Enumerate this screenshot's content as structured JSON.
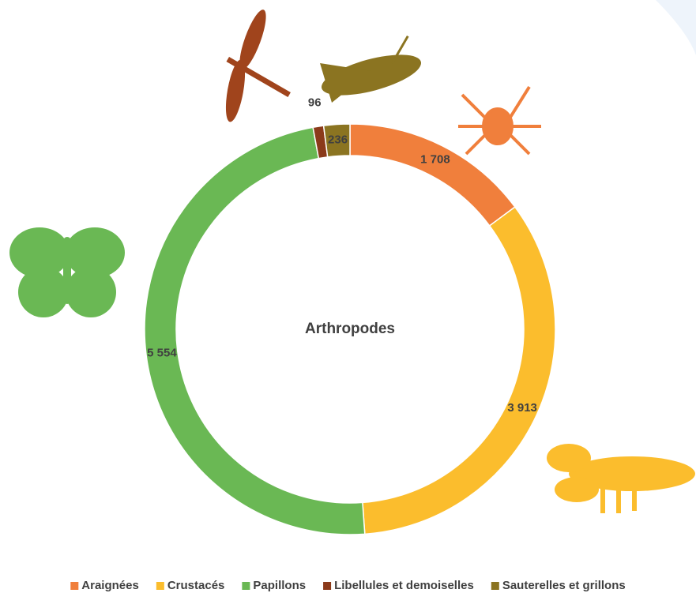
{
  "chart_data": {
    "type": "donut",
    "center_label": "Arthropodes",
    "categories": [
      "Araignées",
      "Crustacés",
      "Papillons",
      "Libellules et demoiselles",
      "Sauterelles et grillons"
    ],
    "values": [
      1708,
      3913,
      5554,
      96,
      236
    ],
    "value_labels": [
      "1 708",
      "3 913",
      "5 554",
      "96",
      "236"
    ],
    "colors": [
      "#f07f3c",
      "#fbbd2d",
      "#6ab854",
      "#8b3a1a",
      "#8b7421"
    ],
    "legend": "bottom"
  }
}
